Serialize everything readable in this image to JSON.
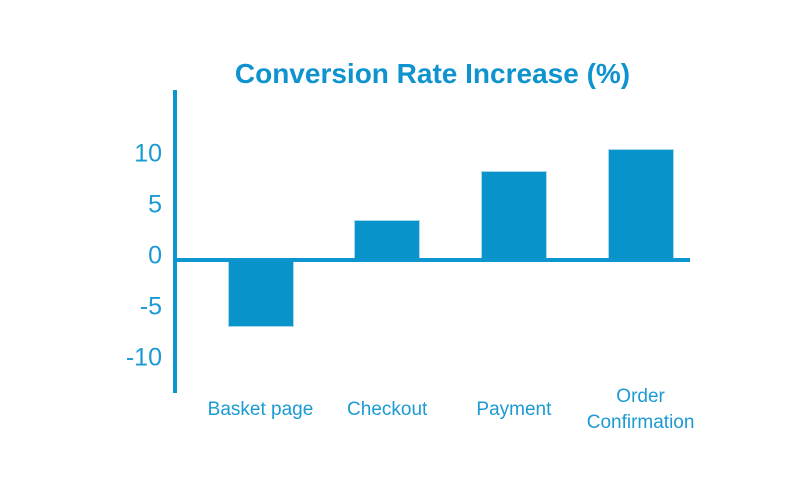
{
  "chart_data": {
    "type": "bar",
    "title": "Conversion Rate Increase (%)",
    "categories": [
      "Basket page",
      "Checkout",
      "Payment",
      "Order Confirmation"
    ],
    "values": [
      -6.6,
      3.9,
      8.7,
      10.9
    ],
    "xlabel": "",
    "ylabel": "",
    "yticks": [
      10,
      5,
      0,
      -5,
      -10
    ],
    "ylim": [
      -13,
      16.7
    ],
    "grid": false,
    "legend": "none",
    "colors": {
      "bar_fill": "#0894cb",
      "bar_edge": "#a6d8ec",
      "axis_line": "#0c95ce",
      "tick_text": "#1b9ad3",
      "category_text": "#1b9ad3",
      "title_text": "#0e93cf",
      "background": "#ffffff"
    }
  }
}
